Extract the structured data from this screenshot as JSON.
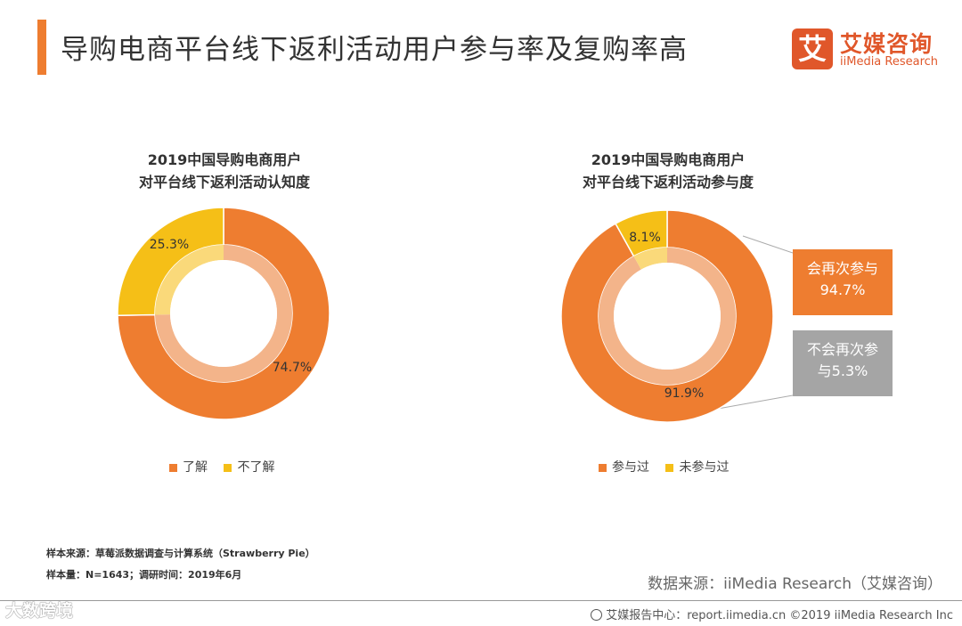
{
  "header": {
    "title": "导购电商平台线下返利活动用户参与率及复购率高",
    "logo_mark": "艾",
    "logo_cn": "艾媒咨询",
    "logo_en": "iiMedia Research"
  },
  "colors": {
    "orange": "#ee7d30",
    "yellow": "#f5bf17",
    "gray": "#a5a5a5",
    "inner_orange": "#f3b48a",
    "inner_yellow": "#fad97a"
  },
  "chart_data": [
    {
      "type": "pie",
      "variant": "donut",
      "title_line1": "2019中国导购电商用户",
      "title_line2": "对平台线下返利活动认知度",
      "slices": [
        {
          "name": "了解",
          "value": 74.7,
          "label": "74.7%"
        },
        {
          "name": "不了解",
          "value": 25.3,
          "label": "25.3%"
        }
      ],
      "legend": [
        "了解",
        "不了解"
      ]
    },
    {
      "type": "pie",
      "variant": "donut",
      "title_line1": "2019中国导购电商用户",
      "title_line2": "对平台线下返利活动参与度",
      "slices": [
        {
          "name": "参与过",
          "value": 91.9,
          "label": "91.9%"
        },
        {
          "name": "未参与过",
          "value": 8.1,
          "label": "8.1%"
        }
      ],
      "legend": [
        "参与过",
        "未参与过"
      ],
      "breakdown": [
        {
          "line1": "会再次参与",
          "line2": "94.7%",
          "value": 94.7
        },
        {
          "line1": "不会再次参",
          "line2": "与5.3%",
          "value": 5.3
        }
      ]
    }
  ],
  "notes": {
    "sample_source": "样本来源：草莓派数据调查与计算系统（Strawberry Pie）",
    "sample_size": "样本量：N=1643；调研时间：2019年6月"
  },
  "data_source": "数据来源：iiMedia Research（艾媒咨询）",
  "footer": "艾媒报告中心：report.iimedia.cn  ©2019  iiMedia Research  Inc",
  "watermark": "大数跨境"
}
